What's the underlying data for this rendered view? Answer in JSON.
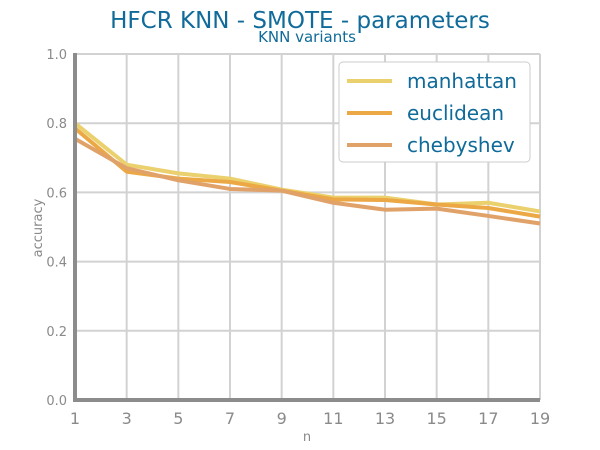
{
  "chart_data": {
    "type": "line",
    "title": "HFCR KNN - SMOTE - parameters",
    "subtitle": "KNN variants",
    "xlabel": "n",
    "ylabel": "accuracy",
    "x": [
      1,
      3,
      5,
      7,
      9,
      11,
      13,
      15,
      17,
      19
    ],
    "xticks": [
      "1",
      "3",
      "5",
      "7",
      "9",
      "11",
      "13",
      "15",
      "17",
      "19"
    ],
    "yticks": [
      "0.0",
      "0.2",
      "0.4",
      "0.6",
      "0.8",
      "1.0"
    ],
    "xlim": [
      1,
      19
    ],
    "ylim": [
      0,
      1
    ],
    "grid": true,
    "legend_position": "top-right",
    "series": [
      {
        "name": "manhattan",
        "color": "#ebd06e",
        "values": [
          0.8,
          0.68,
          0.655,
          0.64,
          0.608,
          0.585,
          0.585,
          0.565,
          0.57,
          0.545
        ]
      },
      {
        "name": "euclidean",
        "color": "#eba845",
        "values": [
          0.785,
          0.66,
          0.64,
          0.63,
          0.605,
          0.58,
          0.578,
          0.565,
          0.555,
          0.53
        ]
      },
      {
        "name": "chebyshev",
        "color": "#e0a268",
        "values": [
          0.755,
          0.67,
          0.635,
          0.61,
          0.605,
          0.57,
          0.55,
          0.553,
          0.532,
          0.51
        ]
      }
    ]
  }
}
